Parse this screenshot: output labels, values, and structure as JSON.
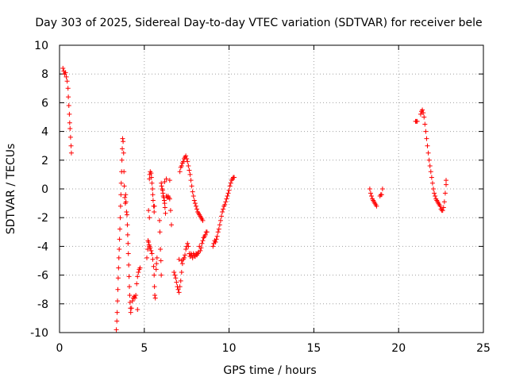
{
  "chart_data": {
    "type": "scatter",
    "title": "Day 303 of 2025, Sidereal Day-to-day VTEC variation (SDTVAR) for receiver bele",
    "xlabel": "GPS time / hours",
    "ylabel": "SDTVAR / TECUs",
    "xlim": [
      0,
      25
    ],
    "ylim": [
      -10,
      10
    ],
    "xticks": [
      0,
      5,
      10,
      15,
      20,
      25
    ],
    "yticks": [
      -10,
      -8,
      -6,
      -4,
      -2,
      0,
      2,
      4,
      6,
      8,
      10
    ],
    "grid": true,
    "marker": "+",
    "series": [
      {
        "name": "SDTVAR",
        "color": "#ff0000",
        "segments": [
          [
            [
              0.2,
              8.4
            ],
            [
              0.25,
              8.2
            ],
            [
              0.3,
              8.0
            ],
            [
              0.35,
              8.1
            ],
            [
              0.4,
              7.8
            ],
            [
              0.45,
              7.5
            ],
            [
              0.5,
              7.0
            ],
            [
              0.52,
              6.4
            ],
            [
              0.55,
              5.8
            ],
            [
              0.58,
              5.2
            ],
            [
              0.6,
              4.6
            ],
            [
              0.62,
              4.2
            ],
            [
              0.65,
              3.6
            ],
            [
              0.68,
              3.0
            ],
            [
              0.7,
              2.5
            ]
          ],
          [
            [
              3.35,
              -9.8
            ],
            [
              3.38,
              -9.2
            ],
            [
              3.4,
              -8.6
            ],
            [
              3.42,
              -7.8
            ],
            [
              3.44,
              -7.0
            ],
            [
              3.46,
              -6.2
            ],
            [
              3.48,
              -5.5
            ],
            [
              3.5,
              -4.8
            ],
            [
              3.52,
              -4.2
            ],
            [
              3.54,
              -3.5
            ],
            [
              3.56,
              -2.8
            ],
            [
              3.58,
              -2.0
            ],
            [
              3.6,
              -1.2
            ],
            [
              3.62,
              -0.4
            ],
            [
              3.64,
              0.4
            ],
            [
              3.66,
              1.2
            ],
            [
              3.68,
              2.0
            ],
            [
              3.7,
              2.8
            ],
            [
              3.72,
              3.5
            ],
            [
              3.75,
              3.3
            ],
            [
              3.78,
              2.5
            ],
            [
              3.8,
              1.2
            ],
            [
              3.82,
              0.2
            ],
            [
              3.85,
              -0.6
            ],
            [
              3.88,
              -1.0
            ],
            [
              3.9,
              -0.4
            ],
            [
              3.92,
              -0.9
            ],
            [
              3.95,
              -1.6
            ],
            [
              3.98,
              -1.8
            ],
            [
              4.0,
              -2.5
            ],
            [
              4.02,
              -3.2
            ],
            [
              4.04,
              -3.8
            ],
            [
              4.06,
              -4.5
            ],
            [
              4.08,
              -5.3
            ],
            [
              4.1,
              -6.1
            ],
            [
              4.12,
              -6.8
            ],
            [
              4.14,
              -7.4
            ],
            [
              4.16,
              -7.9
            ],
            [
              4.18,
              -8.3
            ],
            [
              4.2,
              -8.6
            ],
            [
              4.25,
              -8.3
            ],
            [
              4.3,
              -7.8
            ],
            [
              4.35,
              -7.6
            ],
            [
              4.4,
              -7.5
            ],
            [
              4.45,
              -7.6
            ],
            [
              4.5,
              -7.4
            ],
            [
              4.55,
              -6.6
            ],
            [
              4.6,
              -6.1
            ],
            [
              4.65,
              -5.8
            ],
            [
              4.7,
              -5.6
            ],
            [
              4.75,
              -5.5
            ],
            [
              4.6,
              -8.4
            ]
          ],
          [
            [
              5.15,
              -4.8
            ],
            [
              5.2,
              -4.2
            ],
            [
              5.22,
              -3.6
            ],
            [
              5.25,
              -3.7
            ],
            [
              5.28,
              -3.9
            ],
            [
              5.3,
              -4.0
            ],
            [
              5.35,
              -4.1
            ],
            [
              5.4,
              -4.3
            ],
            [
              5.45,
              -4.5
            ],
            [
              5.5,
              -4.9
            ],
            [
              5.55,
              -5.4
            ],
            [
              5.58,
              -6.0
            ],
            [
              5.6,
              -6.8
            ],
            [
              5.62,
              -7.4
            ],
            [
              5.65,
              -7.6
            ],
            [
              5.7,
              -5.6
            ],
            [
              5.72,
              -5.2
            ],
            [
              5.75,
              -4.8
            ]
          ],
          [
            [
              5.3,
              0.7
            ],
            [
              5.32,
              1.0
            ],
            [
              5.35,
              1.2
            ],
            [
              5.4,
              1.1
            ],
            [
              5.42,
              0.8
            ],
            [
              5.45,
              0.4
            ],
            [
              5.48,
              0.0
            ],
            [
              5.5,
              -0.4
            ],
            [
              5.52,
              -0.8
            ],
            [
              5.55,
              -1.2
            ],
            [
              5.58,
              -1.6
            ],
            [
              5.6,
              -1.2
            ],
            [
              5.25,
              -1.5
            ],
            [
              5.3,
              -2.0
            ]
          ],
          [
            [
              5.9,
              -2.2
            ],
            [
              5.92,
              -3.0
            ],
            [
              5.95,
              -4.2
            ],
            [
              5.98,
              -5.0
            ],
            [
              6.0,
              -6.0
            ],
            [
              6.0,
              0.4
            ],
            [
              6.02,
              0.2
            ],
            [
              6.05,
              0.0
            ],
            [
              6.08,
              -0.1
            ],
            [
              6.1,
              -0.3
            ],
            [
              6.12,
              -0.5
            ],
            [
              6.15,
              -0.6
            ],
            [
              6.18,
              -0.8
            ],
            [
              6.2,
              -1.0
            ],
            [
              6.22,
              -1.3
            ],
            [
              6.25,
              -1.7
            ],
            [
              6.3,
              -0.5
            ],
            [
              6.35,
              -0.6
            ],
            [
              6.4,
              -0.5
            ],
            [
              6.45,
              -0.6
            ],
            [
              6.5,
              -0.7
            ],
            [
              6.55,
              -1.5
            ],
            [
              6.6,
              -2.5
            ],
            [
              6.5,
              0.6
            ],
            [
              6.3,
              0.7
            ],
            [
              6.2,
              0.5
            ]
          ],
          [
            [
              6.75,
              -5.8
            ],
            [
              6.8,
              -6.0
            ],
            [
              6.85,
              -6.2
            ],
            [
              6.9,
              -6.5
            ],
            [
              6.95,
              -6.8
            ],
            [
              7.0,
              -7.0
            ],
            [
              7.05,
              -7.2
            ],
            [
              7.1,
              -6.8
            ],
            [
              7.15,
              -6.4
            ],
            [
              7.2,
              -5.8
            ],
            [
              7.25,
              -5.2
            ],
            [
              7.3,
              -4.9
            ],
            [
              7.35,
              -4.8
            ],
            [
              7.4,
              -4.6
            ],
            [
              7.45,
              -4.2
            ],
            [
              7.5,
              -4.0
            ],
            [
              7.55,
              -3.8
            ],
            [
              7.6,
              -4.0
            ],
            [
              7.65,
              -4.5
            ],
            [
              7.7,
              -4.7
            ],
            [
              7.75,
              -4.5
            ],
            [
              7.8,
              -4.6
            ],
            [
              7.85,
              -4.8
            ],
            [
              7.9,
              -4.5
            ],
            [
              7.95,
              -4.6
            ],
            [
              8.0,
              -4.7
            ],
            [
              8.05,
              -4.5
            ],
            [
              8.1,
              -4.6
            ],
            [
              8.15,
              -4.5
            ],
            [
              8.2,
              -4.4
            ],
            [
              8.25,
              -4.0
            ],
            [
              8.3,
              -4.3
            ],
            [
              8.35,
              -4.1
            ],
            [
              8.4,
              -3.8
            ],
            [
              8.45,
              -3.6
            ],
            [
              8.5,
              -3.4
            ],
            [
              8.55,
              -3.3
            ],
            [
              8.6,
              -3.2
            ],
            [
              8.65,
              -3.0
            ],
            [
              8.7,
              -3.0
            ],
            [
              7.2,
              -5.0
            ],
            [
              7.05,
              -4.9
            ]
          ],
          [
            [
              7.1,
              1.2
            ],
            [
              7.15,
              1.5
            ],
            [
              7.2,
              1.6
            ],
            [
              7.25,
              1.8
            ],
            [
              7.3,
              1.9
            ],
            [
              7.35,
              2.1
            ],
            [
              7.4,
              2.2
            ],
            [
              7.45,
              2.3
            ],
            [
              7.5,
              2.1
            ],
            [
              7.55,
              1.9
            ],
            [
              7.6,
              1.6
            ],
            [
              7.65,
              1.3
            ],
            [
              7.7,
              1.0
            ],
            [
              7.75,
              0.6
            ],
            [
              7.8,
              0.2
            ],
            [
              7.85,
              -0.2
            ],
            [
              7.9,
              -0.5
            ],
            [
              7.95,
              -0.8
            ],
            [
              8.0,
              -1.0
            ],
            [
              8.05,
              -1.2
            ],
            [
              8.1,
              -1.4
            ],
            [
              8.15,
              -1.6
            ],
            [
              8.2,
              -1.7
            ],
            [
              8.25,
              -1.8
            ],
            [
              8.3,
              -1.9
            ],
            [
              8.35,
              -2.0
            ],
            [
              8.4,
              -2.1
            ],
            [
              8.45,
              -2.2
            ]
          ],
          [
            [
              9.05,
              -4.0
            ],
            [
              9.1,
              -3.8
            ],
            [
              9.15,
              -3.6
            ],
            [
              9.2,
              -3.7
            ],
            [
              9.25,
              -3.5
            ],
            [
              9.3,
              -3.3
            ],
            [
              9.35,
              -3.0
            ],
            [
              9.4,
              -2.8
            ],
            [
              9.45,
              -2.5
            ],
            [
              9.5,
              -2.2
            ],
            [
              9.55,
              -1.9
            ],
            [
              9.6,
              -1.6
            ],
            [
              9.65,
              -1.4
            ],
            [
              9.7,
              -1.2
            ],
            [
              9.75,
              -1.1
            ],
            [
              9.8,
              -0.9
            ],
            [
              9.85,
              -0.7
            ],
            [
              9.9,
              -0.5
            ],
            [
              9.95,
              -0.3
            ],
            [
              10.0,
              -0.1
            ],
            [
              10.05,
              0.2
            ],
            [
              10.1,
              0.4
            ],
            [
              10.15,
              0.6
            ],
            [
              10.2,
              0.7
            ],
            [
              10.25,
              0.8
            ],
            [
              10.3,
              0.8
            ]
          ],
          [
            [
              18.3,
              0.0
            ],
            [
              18.35,
              -0.3
            ],
            [
              18.4,
              -0.5
            ],
            [
              18.45,
              -0.7
            ],
            [
              18.5,
              -0.8
            ],
            [
              18.55,
              -0.9
            ],
            [
              18.6,
              -1.0
            ],
            [
              18.65,
              -1.1
            ],
            [
              18.7,
              -1.2
            ]
          ],
          [
            [
              18.9,
              -0.5
            ],
            [
              18.95,
              -0.4
            ],
            [
              19.0,
              -0.4
            ],
            [
              19.05,
              0.0
            ]
          ],
          [
            [
              21.0,
              4.7
            ],
            [
              21.05,
              4.7
            ],
            [
              21.1,
              4.7
            ],
            [
              21.3,
              5.2
            ],
            [
              21.35,
              5.4
            ],
            [
              21.4,
              5.5
            ],
            [
              21.45,
              5.3
            ],
            [
              21.5,
              5.0
            ],
            [
              21.55,
              4.5
            ],
            [
              21.6,
              4.0
            ],
            [
              21.65,
              3.5
            ],
            [
              21.7,
              3.0
            ],
            [
              21.75,
              2.5
            ],
            [
              21.8,
              2.0
            ],
            [
              21.85,
              1.6
            ],
            [
              21.9,
              1.2
            ],
            [
              21.95,
              0.8
            ],
            [
              22.0,
              0.4
            ],
            [
              22.05,
              0.0
            ],
            [
              22.1,
              -0.3
            ],
            [
              22.15,
              -0.5
            ],
            [
              22.2,
              -0.7
            ],
            [
              22.25,
              -0.8
            ],
            [
              22.3,
              -0.9
            ],
            [
              22.35,
              -1.0
            ],
            [
              22.4,
              -1.1
            ],
            [
              22.45,
              -1.2
            ],
            [
              22.5,
              -1.4
            ],
            [
              22.55,
              -1.5
            ],
            [
              22.6,
              -1.5
            ],
            [
              22.65,
              -1.3
            ],
            [
              22.7,
              -0.9
            ],
            [
              22.75,
              -0.3
            ],
            [
              22.8,
              0.3
            ],
            [
              22.8,
              0.6
            ]
          ]
        ]
      }
    ]
  }
}
